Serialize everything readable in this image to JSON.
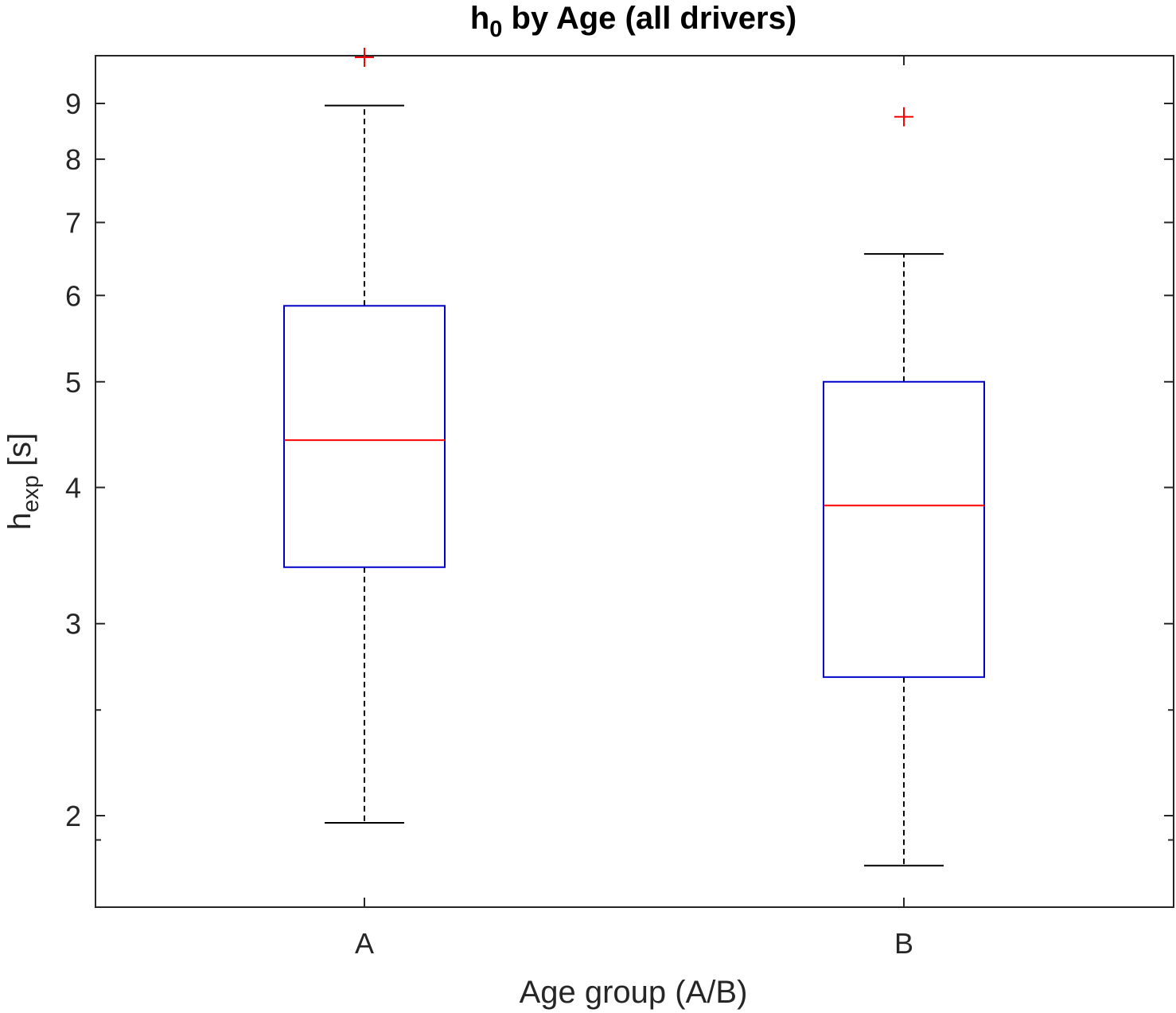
{
  "chart_data": {
    "type": "box",
    "title": {
      "main": "h",
      "sub": "0",
      "rest": " by Age (all drivers)"
    },
    "xlabel": "Age group (A/B)",
    "ylabel": {
      "main": "h",
      "sub": "exp",
      "rest": " [s]"
    },
    "y_scale": "log",
    "ylim": [
      1.8,
      10
    ],
    "y_major_ticks": [
      2,
      3,
      4,
      5,
      6,
      7,
      8,
      9
    ],
    "y_minor_ticks": [
      1.9,
      2.5
    ],
    "grid": false,
    "box_color": "#0000cc",
    "median_color": "#ff0000",
    "whisker_color": "#000000",
    "outlier_color": "#ff0000",
    "categories": [
      "A",
      "B"
    ],
    "groups": [
      {
        "category": "A",
        "whisker_low": 1.97,
        "q1": 3.38,
        "median": 4.42,
        "q3": 5.87,
        "whisker_high": 8.96,
        "outliers": [
          10.0
        ]
      },
      {
        "category": "B",
        "whisker_low": 1.8,
        "q1": 2.68,
        "median": 3.85,
        "q3": 5.0,
        "whisker_high": 6.55,
        "outliers": [
          8.75
        ]
      }
    ]
  }
}
